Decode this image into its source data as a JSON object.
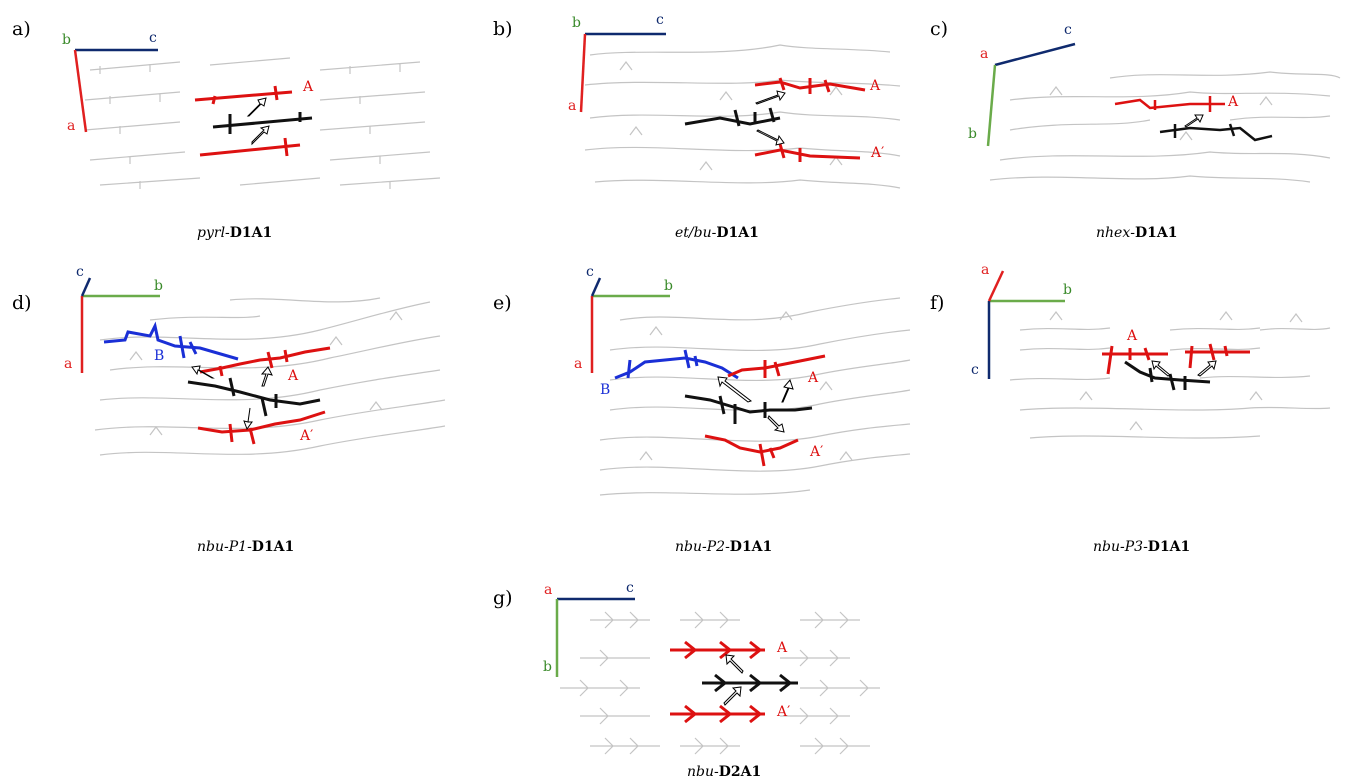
{
  "colors": {
    "axis_a": "#e02020",
    "axis_b": "#6aab4a",
    "axis_c": "#0f2a6e",
    "mol_a": "#dd1111",
    "mol_center": "#111111",
    "mol_b": "#1a2fd6",
    "mol_grey": "#c4c4c4",
    "label_b_green": "#3a8a2a"
  },
  "panels": [
    {
      "label": "a)",
      "caption": {
        "italic": "pyrl",
        "sep": "-",
        "bold": "D1A1"
      },
      "axis_labels": {
        "a": "a",
        "b": "b",
        "c": "c"
      },
      "mol_labels": {
        "A": "A"
      }
    },
    {
      "label": "b)",
      "caption": {
        "italic": "et/bu",
        "sep": "-",
        "bold": "D1A1"
      },
      "axis_labels": {
        "a": "a",
        "b": "b",
        "c": "c"
      },
      "mol_labels": {
        "A": "A",
        "A2": "A′"
      }
    },
    {
      "label": "c)",
      "caption": {
        "italic": "nhex",
        "sep": "-",
        "bold": "D1A1"
      },
      "axis_labels": {
        "a": "a",
        "b": "b",
        "c": "c"
      },
      "mol_labels": {
        "A": "A"
      }
    },
    {
      "label": "d)",
      "caption": {
        "italic": "nbu-P1",
        "sep": "-",
        "bold": "D1A1"
      },
      "axis_labels": {
        "a": "a",
        "b": "b",
        "c": "c"
      },
      "mol_labels": {
        "A": "A",
        "A2": "A′",
        "B": "B"
      }
    },
    {
      "label": "e)",
      "caption": {
        "italic": "nbu-P2",
        "sep": "-",
        "bold": "D1A1"
      },
      "axis_labels": {
        "a": "a",
        "b": "b",
        "c": "c"
      },
      "mol_labels": {
        "A": "A",
        "A2": "A′",
        "B": "B"
      }
    },
    {
      "label": "f)",
      "caption": {
        "italic": "nbu-P3",
        "sep": "-",
        "bold": "D1A1"
      },
      "axis_labels": {
        "a": "a",
        "b": "b",
        "c": "c"
      },
      "mol_labels": {
        "A": "A"
      }
    },
    {
      "label": "g)",
      "caption": {
        "italic": "nbu",
        "sep": "-",
        "bold": "D2A1"
      },
      "axis_labels": {
        "a": "a",
        "b": "b",
        "c": "c"
      },
      "mol_labels": {
        "A": "A",
        "A2": "A′"
      }
    }
  ]
}
